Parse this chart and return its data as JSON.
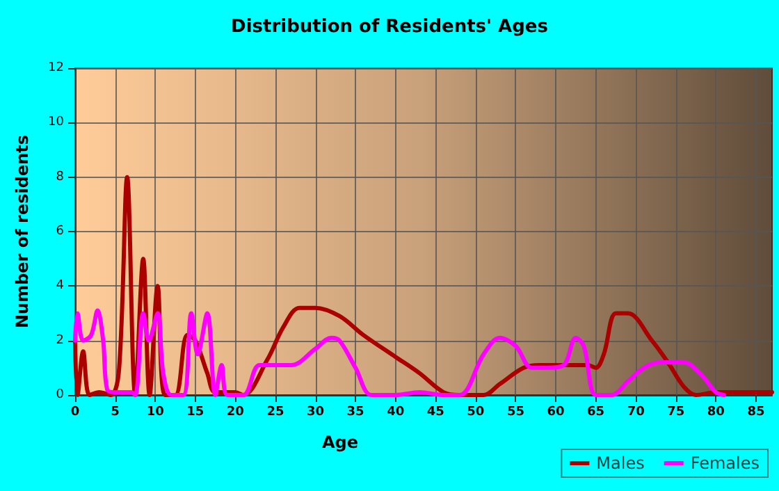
{
  "chart_data": {
    "type": "line",
    "title": "Distribution of Residents' Ages",
    "xlabel": "Age",
    "ylabel": "Number of residents",
    "xlim": [
      0,
      87
    ],
    "xticks": [
      0,
      5,
      10,
      15,
      20,
      25,
      30,
      35,
      40,
      45,
      50,
      55,
      60,
      65,
      70,
      75,
      80,
      85
    ],
    "ylim": [
      0,
      12
    ],
    "yticks": [
      0,
      2,
      4,
      6,
      8,
      10,
      12
    ],
    "grid": true,
    "legend": "bottom right",
    "marker": "none",
    "line_style": "solid",
    "series": [
      {
        "name": "Males",
        "color": "#aa0000",
        "x": [
          0,
          0.3,
          1,
          1.8,
          3,
          4.5,
          5.5,
          6.5,
          7.5,
          8.5,
          9.3,
          10.3,
          11.2,
          12.5,
          14,
          15,
          16.5,
          17.5,
          20,
          21,
          24,
          26,
          28,
          30,
          33,
          36,
          40,
          43,
          46,
          48,
          51,
          53,
          56,
          58,
          60,
          64,
          65,
          66,
          67.5,
          69,
          72,
          74,
          76,
          77.5,
          80,
          87
        ],
        "values": [
          2.0,
          0,
          1.6,
          0,
          0.1,
          0,
          1.0,
          8.0,
          0,
          5.0,
          0,
          4.0,
          0,
          0,
          2.2,
          2.0,
          0.8,
          0.1,
          0.1,
          0,
          1.3,
          2.5,
          3.2,
          3.2,
          2.9,
          2.2,
          1.4,
          0.8,
          0.1,
          0,
          0,
          0.4,
          1.0,
          1.1,
          1.1,
          1.1,
          1.0,
          1.5,
          3.0,
          3.0,
          2.0,
          1.2,
          0.3,
          0,
          0.1,
          0.1
        ]
      },
      {
        "name": "Females",
        "color": "#ff00ff",
        "x": [
          0,
          0.3,
          1,
          2,
          2.8,
          3.5,
          4,
          5,
          7,
          7.5,
          8.5,
          9.2,
          10.3,
          11,
          12,
          13.5,
          14.5,
          15.3,
          16.5,
          17.5,
          18.3,
          19,
          21,
          23,
          25,
          27,
          30,
          32,
          33,
          35,
          37,
          40,
          43,
          46,
          48,
          51,
          53,
          55,
          57,
          59,
          61,
          62.5,
          63.5,
          65,
          67,
          69,
          71,
          73,
          76,
          78,
          80,
          81
        ],
        "values": [
          2,
          3,
          2,
          2.2,
          3.1,
          2,
          0.2,
          0.1,
          0.1,
          0,
          3,
          2,
          3,
          0.8,
          0,
          0,
          3.0,
          1.5,
          3.0,
          0,
          1.1,
          0,
          0,
          1.1,
          1.1,
          1.1,
          1.7,
          2.1,
          2.0,
          1.0,
          0,
          0,
          0.1,
          0,
          0,
          1.5,
          2.1,
          1.8,
          1.0,
          1.0,
          1.1,
          2.1,
          1.8,
          0,
          0,
          0.5,
          1.0,
          1.2,
          1.2,
          0.8,
          0.1,
          0
        ]
      }
    ]
  }
}
